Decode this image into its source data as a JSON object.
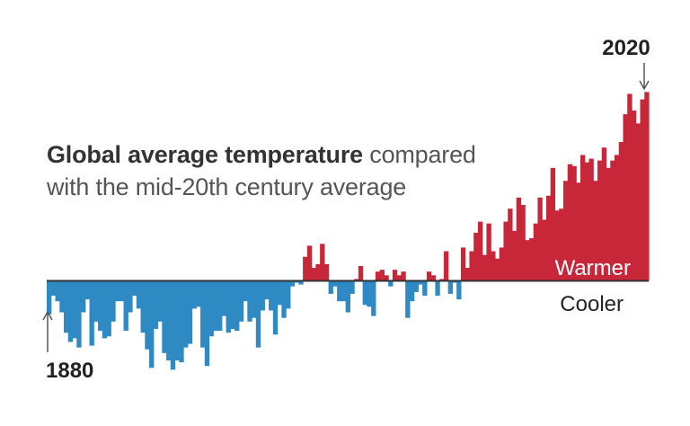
{
  "title": {
    "bold": "Global average temperature",
    "regular_line1": "compared",
    "regular_line2": "with the mid-20th century average"
  },
  "labels": {
    "start_year": "1880",
    "end_year": "2020",
    "warmer": "Warmer",
    "cooler": "Cooler"
  },
  "colors": {
    "warm": "#c8273a",
    "cool": "#2f8ac4",
    "baseline": "#333333"
  },
  "chart_data": {
    "type": "bar",
    "x_start": 1880,
    "x_end": 2020,
    "ylabel": "",
    "baseline": 0,
    "values": [
      -0.18,
      -0.08,
      -0.11,
      -0.17,
      -0.28,
      -0.33,
      -0.31,
      -0.36,
      -0.17,
      -0.1,
      -0.35,
      -0.22,
      -0.27,
      -0.31,
      -0.3,
      -0.22,
      -0.11,
      -0.11,
      -0.27,
      -0.17,
      -0.08,
      -0.15,
      -0.28,
      -0.37,
      -0.47,
      -0.26,
      -0.22,
      -0.39,
      -0.43,
      -0.48,
      -0.43,
      -0.44,
      -0.36,
      -0.34,
      -0.15,
      -0.14,
      -0.36,
      -0.46,
      -0.3,
      -0.27,
      -0.27,
      -0.19,
      -0.28,
      -0.26,
      -0.27,
      -0.22,
      -0.11,
      -0.22,
      -0.2,
      -0.36,
      -0.16,
      -0.1,
      -0.16,
      -0.29,
      -0.13,
      -0.2,
      -0.15,
      -0.03,
      -0.01,
      -0.02,
      0.13,
      0.19,
      0.07,
      0.09,
      0.2,
      0.09,
      -0.07,
      -0.03,
      -0.11,
      -0.11,
      -0.17,
      -0.07,
      0.01,
      0.08,
      -0.13,
      -0.14,
      -0.19,
      0.05,
      0.06,
      0.03,
      -0.03,
      0.06,
      0.03,
      0.05,
      -0.2,
      -0.11,
      -0.06,
      -0.02,
      -0.08,
      0.05,
      0.03,
      -0.08,
      0.01,
      0.16,
      -0.07,
      -0.01,
      -0.1,
      0.18,
      0.07,
      0.16,
      0.26,
      0.32,
      0.14,
      0.31,
      0.16,
      0.12,
      0.18,
      0.32,
      0.39,
      0.27,
      0.45,
      0.41,
      0.22,
      0.23,
      0.31,
      0.45,
      0.33,
      0.46,
      0.61,
      0.38,
      0.39,
      0.54,
      0.63,
      0.62,
      0.53,
      0.68,
      0.64,
      0.66,
      0.54,
      0.65,
      0.72,
      0.61,
      0.65,
      0.68,
      0.75,
      0.9,
      1.01,
      0.92,
      0.85,
      0.98,
      1.02
    ],
    "warm_label": "Warmer",
    "cool_label": "Cooler",
    "annotations": [
      "1880",
      "2020"
    ]
  }
}
